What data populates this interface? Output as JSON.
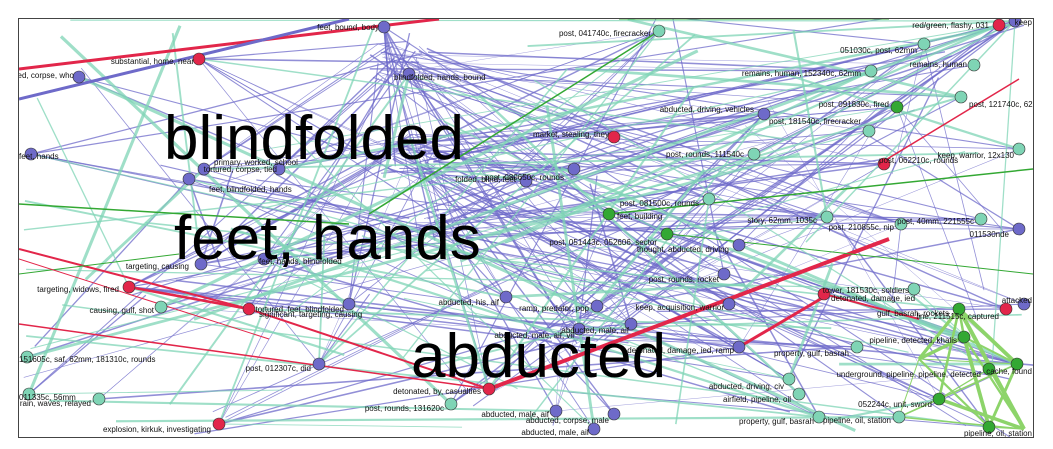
{
  "title_words": [
    "blindfolded",
    "feet, hands",
    "abducted"
  ],
  "colors": {
    "purple": "#6e6ac9",
    "teal": "#7fd4b5",
    "green": "#33a833",
    "red": "#e2264a",
    "lightgreen": "#8dd46a"
  },
  "labels": [
    "feet, bound, body",
    "substantial, home, near",
    "abducted, corpse, who",
    "blindfolded, hands, bound",
    "post, 041740c, firecracker",
    "051030c, post, 62mm",
    "remains, human, 152340c, 62mm",
    "remains, human",
    "red/green, flashy, 031",
    "keep",
    "abducted, driving, vehicles",
    "post, 091830c, fired",
    "post, 121740c, 62mm",
    "post, 181540c, firecracker",
    "market, stealing, they",
    "keep, warrior, 12x130",
    "post, rounds, 111540c",
    "tortured, corpse, tied",
    "feet, blindfolded, hands",
    "primary, worked, school",
    "feet, hands",
    "post, 080650c, rounds",
    "folded, blind, feet",
    "post, 081500c, rounds",
    "post, 062210c, rounds",
    "post, 40mm, 221555c",
    "feet, building",
    "post, 051443c, 052606, sector",
    "story, 62mm, 1035c",
    "post, 210855c, nip",
    "thought, abducted, driving",
    "011530nde",
    "significant, targeting, causing",
    "targeting, causing",
    "targeting, widows, fired",
    "feet, hands, blindfolded",
    "post, rounds, rocket",
    "tortured, feet, blindfolded",
    "abducted, his, aif",
    "ramp, predator, pop",
    "keep, acquisition, warrior",
    "detonated, damage, ied",
    "tower, 181530c, soldiers",
    "gulf, basrah, rockets",
    "line, 211515c, captured",
    "attacked",
    "causing, gulf, shot",
    "abducted, male, aif",
    "abducted, male, aif, vil",
    "151605c, saf, 62mm, 181310c, rounds",
    "post, 012307c, did",
    "detonated, damage, ied, ramp",
    "underground, pipeline, pipeline, detected",
    "property, gulf, basrah",
    "pipeline, detected, khalis",
    "cache, found",
    "011335c, 56mm",
    "detonated, by, casualties",
    "abducted, driving, civ",
    "airfield, pipeline, oil",
    "pipeline, oil, station",
    "052244c, unit, sword",
    "rain, waves, relayed",
    "post, rounds, 131620c",
    "abducted, male, aif",
    "abducted, corpse, male",
    "property, gulf, basrah",
    "explosion, kirkuk, investigating",
    "abducted, male, aif",
    "pipeline, oil, station"
  ]
}
